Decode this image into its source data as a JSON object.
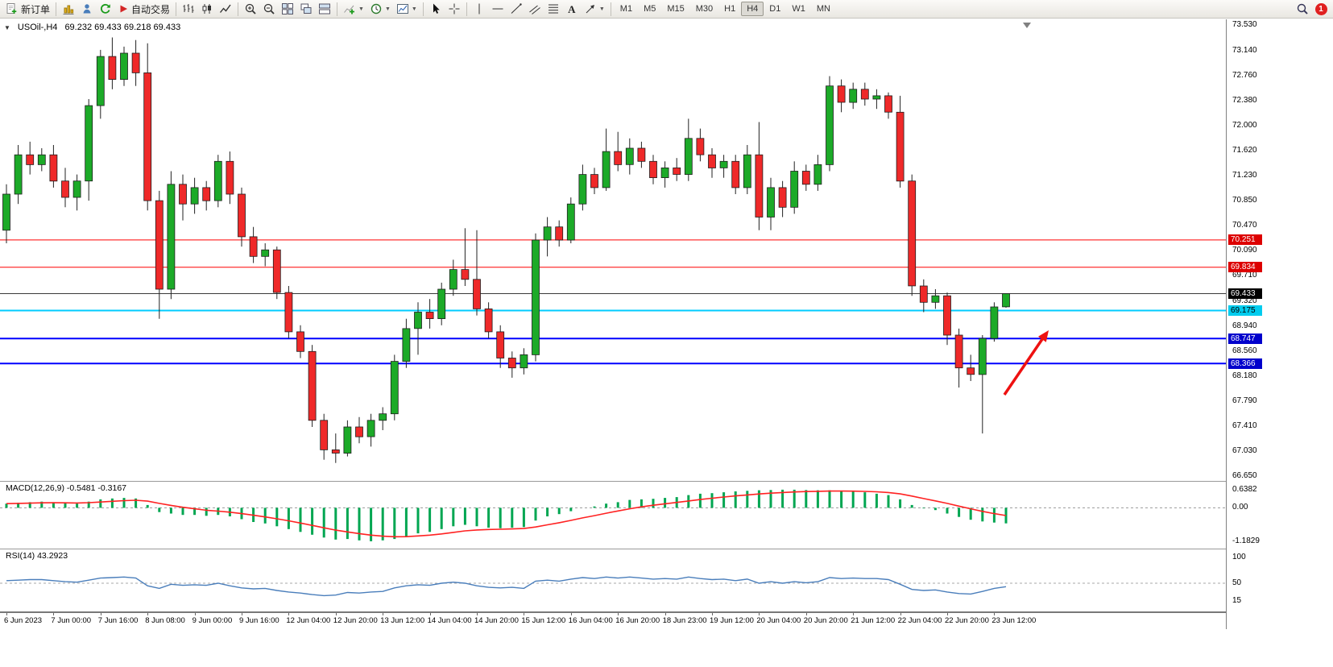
{
  "toolbar": {
    "new_order_label": "新订单",
    "auto_trading_label": "自动交易",
    "text_tool_label": "A",
    "timeframes": [
      "M1",
      "M5",
      "M15",
      "M30",
      "H1",
      "H4",
      "D1",
      "W1",
      "MN"
    ],
    "active_timeframe": "H4",
    "notification_count": "1",
    "icon_names": [
      "new-order",
      "new-chart",
      "profiles",
      "refresh",
      "auto-trading",
      "bar-chart",
      "candlestick-chart",
      "line-chart",
      "zoom-in",
      "zoom-out",
      "tile-windows",
      "cascade-windows",
      "arrange-windows",
      "add-indicator",
      "periods",
      "templates",
      "cursor",
      "crosshair",
      "vertical-line",
      "horizontal-line",
      "trendline",
      "equidistant-channel",
      "fibonacci",
      "text-tool",
      "arrow-tool",
      "search",
      "notification"
    ]
  },
  "chart": {
    "symbol_period": "USOil-,H4",
    "ohlc_text": "69.232 69.433 69.218 69.433"
  },
  "macd_panel": {
    "label": "MACD(12,26,9) -0.5481 -0.3167",
    "axis_labels": [
      "0.6382",
      "0.00",
      "-1.1829"
    ]
  },
  "rsi_panel": {
    "label": "RSI(14) 43.2923",
    "axis_labels": [
      "100",
      "50",
      "15"
    ]
  },
  "colors": {
    "up": "#1caa28",
    "down": "#ef2929",
    "wick": "#222222",
    "macd_hist": "#00a651",
    "macd_signal": "#ff2222",
    "rsi_line": "#4a7ebb",
    "arrow": "#ee1111",
    "level_red": "#ff0000",
    "level_cyan": "#00ccff",
    "level_blue": "#0000ff",
    "current_price_line": "#3a3a3a"
  },
  "price_axis": {
    "ticks": [
      "73.530",
      "73.140",
      "72.760",
      "72.380",
      "72.000",
      "71.620",
      "71.230",
      "70.850",
      "70.470",
      "70.090",
      "69.710",
      "69.320",
      "68.940",
      "68.560",
      "68.180",
      "67.790",
      "67.410",
      "67.030",
      "66.650"
    ],
    "tags": [
      {
        "text": "70.251",
        "price": 70.251,
        "bg": "#dd0000",
        "fg": "#ffffff"
      },
      {
        "text": "69.834",
        "price": 69.834,
        "bg": "#dd0000",
        "fg": "#ffffff"
      },
      {
        "text": "69.433",
        "price": 69.433,
        "bg": "#000000",
        "fg": "#ffffff"
      },
      {
        "text": "69.175",
        "price": 69.175,
        "bg": "#00ccee",
        "fg": "#000000"
      },
      {
        "text": "68.747",
        "price": 68.747,
        "bg": "#0000cc",
        "fg": "#ffffff"
      },
      {
        "text": "68.366",
        "price": 68.366,
        "bg": "#0000cc",
        "fg": "#ffffff"
      }
    ]
  },
  "chart_data": [
    {
      "type": "candlestick",
      "symbol": "USOil-",
      "timeframe": "H4",
      "ylim": [
        66.65,
        73.53
      ],
      "current_price": 69.433,
      "levels": [
        {
          "price": 70.251,
          "color": "#ff0000",
          "width": 1
        },
        {
          "price": 69.834,
          "color": "#ff0000",
          "width": 1
        },
        {
          "price": 69.175,
          "color": "#00ccff",
          "width": 2
        },
        {
          "price": 68.747,
          "color": "#0000ff",
          "width": 2
        },
        {
          "price": 68.366,
          "color": "#0000ff",
          "width": 2
        }
      ],
      "annotations": [
        {
          "type": "arrow-up-right",
          "color": "#ee1111"
        }
      ],
      "x_label_step": 4,
      "x_labels": [
        "6 Jun 2023",
        "7 Jun 00:00",
        "7 Jun 16:00",
        "8 Jun 08:00",
        "9 Jun 00:00",
        "9 Jun 16:00",
        "12 Jun 04:00",
        "12 Jun 20:00",
        "13 Jun 12:00",
        "14 Jun 04:00",
        "14 Jun 20:00",
        "15 Jun 12:00",
        "16 Jun 04:00",
        "16 Jun 20:00",
        "18 Jun 23:00",
        "19 Jun 12:00",
        "20 Jun 04:00",
        "20 Jun 20:00",
        "21 Jun 12:00",
        "22 Jun 04:00",
        "22 Jun 20:00",
        "23 Jun 12:00"
      ],
      "candles": [
        [
          70.4,
          71.1,
          70.2,
          70.95
        ],
        [
          70.95,
          71.7,
          70.8,
          71.55
        ],
        [
          71.55,
          71.75,
          71.25,
          71.4
        ],
        [
          71.4,
          71.65,
          71.3,
          71.55
        ],
        [
          71.55,
          71.7,
          71.05,
          71.15
        ],
        [
          71.15,
          71.35,
          70.75,
          70.9
        ],
        [
          70.9,
          71.25,
          70.7,
          71.15
        ],
        [
          71.15,
          72.4,
          70.85,
          72.3
        ],
        [
          72.3,
          73.15,
          72.1,
          73.05
        ],
        [
          73.05,
          73.34,
          72.55,
          72.7
        ],
        [
          72.7,
          73.2,
          72.6,
          73.1
        ],
        [
          73.1,
          73.3,
          72.6,
          72.8
        ],
        [
          72.8,
          73.25,
          70.7,
          70.85
        ],
        [
          70.85,
          71.0,
          69.05,
          69.5
        ],
        [
          69.5,
          71.3,
          69.35,
          71.1
        ],
        [
          71.1,
          71.25,
          70.55,
          70.8
        ],
        [
          70.8,
          71.2,
          70.65,
          71.05
        ],
        [
          71.05,
          71.15,
          70.7,
          70.85
        ],
        [
          70.85,
          71.55,
          70.75,
          71.45
        ],
        [
          71.45,
          71.6,
          70.8,
          70.95
        ],
        [
          70.95,
          71.05,
          70.15,
          70.3
        ],
        [
          70.3,
          70.45,
          69.9,
          70.0
        ],
        [
          70.0,
          70.2,
          69.85,
          70.1
        ],
        [
          70.1,
          70.15,
          69.35,
          69.45
        ],
        [
          69.45,
          69.55,
          68.75,
          68.85
        ],
        [
          68.85,
          68.95,
          68.45,
          68.55
        ],
        [
          68.55,
          68.65,
          67.4,
          67.5
        ],
        [
          67.5,
          67.6,
          66.9,
          67.05
        ],
        [
          67.05,
          67.3,
          66.85,
          67.0
        ],
        [
          67.0,
          67.5,
          66.95,
          67.4
        ],
        [
          67.4,
          67.55,
          67.15,
          67.25
        ],
        [
          67.25,
          67.6,
          67.1,
          67.5
        ],
        [
          67.5,
          67.7,
          67.35,
          67.6
        ],
        [
          67.6,
          68.5,
          67.5,
          68.4
        ],
        [
          68.4,
          69.05,
          68.3,
          68.9
        ],
        [
          68.9,
          69.3,
          68.5,
          69.15
        ],
        [
          69.15,
          69.35,
          68.9,
          69.05
        ],
        [
          69.05,
          69.6,
          68.95,
          69.5
        ],
        [
          69.5,
          69.95,
          69.4,
          69.8
        ],
        [
          69.8,
          70.43,
          69.55,
          69.65
        ],
        [
          69.65,
          70.4,
          69.1,
          69.2
        ],
        [
          69.2,
          69.3,
          68.75,
          68.85
        ],
        [
          68.85,
          68.95,
          68.3,
          68.45
        ],
        [
          68.45,
          68.55,
          68.15,
          68.3
        ],
        [
          68.3,
          68.6,
          68.2,
          68.5
        ],
        [
          68.5,
          70.35,
          68.4,
          70.25
        ],
        [
          70.25,
          70.6,
          70.0,
          70.45
        ],
        [
          70.45,
          70.55,
          70.15,
          70.25
        ],
        [
          70.25,
          70.9,
          70.2,
          70.8
        ],
        [
          70.8,
          71.4,
          70.7,
          71.25
        ],
        [
          71.25,
          71.35,
          70.95,
          71.05
        ],
        [
          71.05,
          71.95,
          71.0,
          71.6
        ],
        [
          71.6,
          71.9,
          71.3,
          71.4
        ],
        [
          71.4,
          71.8,
          71.25,
          71.65
        ],
        [
          71.65,
          71.75,
          71.35,
          71.45
        ],
        [
          71.45,
          71.55,
          71.1,
          71.2
        ],
        [
          71.2,
          71.45,
          71.05,
          71.35
        ],
        [
          71.35,
          71.5,
          71.15,
          71.25
        ],
        [
          71.25,
          72.1,
          71.15,
          71.8
        ],
        [
          71.8,
          71.95,
          71.45,
          71.55
        ],
        [
          71.55,
          71.65,
          71.2,
          71.35
        ],
        [
          71.35,
          71.55,
          71.2,
          71.45
        ],
        [
          71.45,
          71.55,
          70.95,
          71.05
        ],
        [
          71.05,
          71.7,
          70.95,
          71.55
        ],
        [
          71.55,
          72.05,
          70.4,
          70.6
        ],
        [
          70.6,
          71.2,
          70.4,
          71.05
        ],
        [
          71.05,
          71.15,
          70.6,
          70.75
        ],
        [
          70.75,
          71.45,
          70.65,
          71.3
        ],
        [
          71.3,
          71.4,
          71.0,
          71.1
        ],
        [
          71.1,
          71.55,
          71.0,
          71.4
        ],
        [
          71.4,
          72.75,
          71.3,
          72.6
        ],
        [
          72.6,
          72.7,
          72.2,
          72.35
        ],
        [
          72.35,
          72.65,
          72.25,
          72.55
        ],
        [
          72.55,
          72.65,
          72.3,
          72.4
        ],
        [
          72.4,
          72.55,
          72.25,
          72.45
        ],
        [
          72.45,
          72.5,
          72.1,
          72.2
        ],
        [
          72.2,
          72.45,
          71.05,
          71.15
        ],
        [
          71.15,
          71.25,
          69.4,
          69.55
        ],
        [
          69.55,
          69.65,
          69.15,
          69.3
        ],
        [
          69.3,
          69.5,
          69.2,
          69.4
        ],
        [
          69.4,
          69.45,
          68.65,
          68.8
        ],
        [
          68.8,
          68.9,
          68.0,
          68.3
        ],
        [
          68.3,
          68.5,
          68.1,
          68.2
        ],
        [
          68.2,
          68.8,
          67.3,
          68.75
        ],
        [
          68.75,
          69.3,
          68.7,
          69.23
        ],
        [
          69.232,
          69.433,
          69.218,
          69.433
        ]
      ]
    },
    {
      "type": "bar",
      "name": "MACD(12,26,9)",
      "main_value": -0.5481,
      "signal_value": -0.3167,
      "ylim": [
        -1.1829,
        0.6382
      ],
      "values": [
        0.15,
        0.18,
        0.2,
        0.22,
        0.2,
        0.17,
        0.15,
        0.22,
        0.3,
        0.33,
        0.35,
        0.33,
        0.1,
        -0.15,
        -0.2,
        -0.25,
        -0.25,
        -0.28,
        -0.25,
        -0.3,
        -0.4,
        -0.5,
        -0.55,
        -0.65,
        -0.75,
        -0.85,
        -0.95,
        -1.05,
        -1.12,
        -1.1,
        -1.15,
        -1.18,
        -1.15,
        -1.1,
        -1.0,
        -0.9,
        -0.85,
        -0.75,
        -0.65,
        -0.6,
        -0.65,
        -0.7,
        -0.72,
        -0.7,
        -0.68,
        -0.45,
        -0.3,
        -0.22,
        -0.12,
        0.0,
        0.05,
        0.15,
        0.2,
        0.28,
        0.3,
        0.32,
        0.35,
        0.38,
        0.45,
        0.5,
        0.52,
        0.55,
        0.58,
        0.6,
        0.62,
        0.63,
        0.64,
        0.64,
        0.63,
        0.62,
        0.62,
        0.6,
        0.58,
        0.55,
        0.5,
        0.45,
        0.3,
        0.1,
        -0.02,
        -0.08,
        -0.2,
        -0.32,
        -0.42,
        -0.48,
        -0.52,
        -0.5481
      ]
    },
    {
      "type": "line",
      "name": "RSI(14)",
      "value": 43.2923,
      "ylim": [
        0,
        100
      ],
      "levels": [
        50
      ],
      "values": [
        55,
        56,
        57,
        57,
        55,
        53,
        52,
        56,
        60,
        61,
        62,
        60,
        45,
        40,
        48,
        46,
        47,
        46,
        50,
        45,
        41,
        39,
        40,
        36,
        33,
        31,
        28,
        26,
        27,
        32,
        31,
        33,
        34,
        41,
        45,
        47,
        46,
        50,
        52,
        50,
        45,
        42,
        41,
        42,
        40,
        54,
        56,
        54,
        58,
        61,
        59,
        62,
        60,
        62,
        60,
        58,
        59,
        58,
        62,
        59,
        57,
        58,
        55,
        58,
        50,
        53,
        50,
        53,
        51,
        53,
        61,
        59,
        60,
        59,
        59,
        57,
        48,
        38,
        36,
        37,
        33,
        30,
        29,
        34,
        40,
        43.29
      ]
    }
  ]
}
